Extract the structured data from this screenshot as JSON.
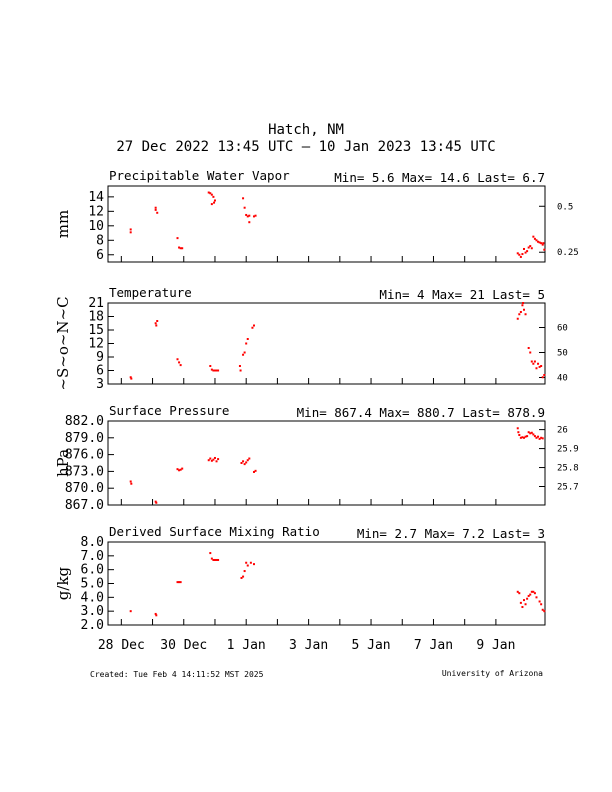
{
  "header": {
    "title": "Hatch, NM",
    "subtitle": "27 Dec 2022 13:45 UTC – 10 Jan 2023 13:45 UTC"
  },
  "footer": {
    "created": "Created: Tue Feb  4 14:11:52 MST 2025",
    "credit": "University of Arizona"
  },
  "x_axis": {
    "labels": [
      "28 Dec",
      "30 Dec",
      "1 Jan",
      "3 Jan",
      "5 Jan",
      "7 Jan",
      "9 Jan"
    ],
    "label_days": [
      1,
      3,
      5,
      7,
      9,
      11,
      13
    ],
    "tick_days": [
      1,
      2,
      3,
      4,
      5,
      6,
      7,
      8,
      9,
      10,
      11,
      12,
      13
    ],
    "range_days": [
      0.573,
      14.573
    ]
  },
  "colors": {
    "data": "#ff0000",
    "axes": "#000000"
  },
  "chart_data": [
    {
      "type": "scatter",
      "title": "Precipitable Water Vapor",
      "stats": "Min= 5.6 Max= 14.6 Last= 6.7",
      "ylabel": "mm",
      "ylim": [
        5,
        15.5
      ],
      "yticks": [
        6,
        8,
        10,
        12,
        14
      ],
      "right_axis": {
        "ticks": [
          0.25,
          0.5
        ],
        "labels": [
          "0.25",
          "0.5"
        ],
        "factor": 25.4
      },
      "points": [
        [
          1.3,
          9.5
        ],
        [
          1.3,
          9.1
        ],
        [
          2.1,
          12.2
        ],
        [
          2.1,
          12.5
        ],
        [
          2.15,
          11.8
        ],
        [
          2.8,
          8.3
        ],
        [
          2.85,
          7.0
        ],
        [
          2.9,
          6.9
        ],
        [
          2.95,
          6.9
        ],
        [
          3.8,
          14.6
        ],
        [
          3.85,
          14.5
        ],
        [
          3.9,
          14.3
        ],
        [
          3.95,
          14.0
        ],
        [
          4.0,
          13.5
        ],
        [
          3.97,
          13.2
        ],
        [
          3.9,
          13.0
        ],
        [
          4.9,
          13.8
        ],
        [
          4.95,
          12.5
        ],
        [
          5.0,
          11.5
        ],
        [
          5.05,
          11.3
        ],
        [
          5.1,
          11.4
        ],
        [
          5.1,
          10.5
        ],
        [
          5.25,
          11.3
        ],
        [
          5.3,
          11.4
        ],
        [
          13.7,
          6.2
        ],
        [
          13.75,
          6.0
        ],
        [
          13.8,
          5.7
        ],
        [
          13.85,
          6.1
        ],
        [
          13.9,
          6.8
        ],
        [
          13.95,
          6.3
        ],
        [
          14.0,
          6.5
        ],
        [
          14.05,
          7.0
        ],
        [
          14.1,
          7.2
        ],
        [
          14.15,
          6.9
        ],
        [
          14.2,
          8.5
        ],
        [
          14.25,
          8.2
        ],
        [
          14.3,
          8.0
        ],
        [
          14.35,
          7.8
        ],
        [
          14.4,
          7.7
        ],
        [
          14.45,
          7.6
        ],
        [
          14.5,
          7.4
        ],
        [
          14.52,
          7.6
        ],
        [
          14.55,
          6.7
        ]
      ]
    },
    {
      "type": "scatter",
      "title": "Temperature",
      "stats": "Min= 4 Max= 21 Last= 5",
      "ylabel": "~S~o~N~C",
      "ylim": [
        3,
        21
      ],
      "yticks": [
        3,
        6,
        9,
        12,
        15,
        18,
        21
      ],
      "right_axis": {
        "ticks": [
          40,
          50,
          60
        ],
        "labels": [
          "40",
          "50",
          "60"
        ],
        "convert": "c_to_f"
      },
      "points": [
        [
          1.3,
          4.5
        ],
        [
          1.32,
          4.2
        ],
        [
          2.1,
          16.5
        ],
        [
          2.12,
          16.0
        ],
        [
          2.15,
          17.0
        ],
        [
          2.8,
          8.5
        ],
        [
          2.85,
          7.8
        ],
        [
          2.9,
          7.2
        ],
        [
          3.85,
          7.0
        ],
        [
          3.9,
          6.2
        ],
        [
          3.95,
          6.0
        ],
        [
          4.0,
          6.0
        ],
        [
          4.05,
          6.0
        ],
        [
          4.1,
          6.0
        ],
        [
          4.8,
          7.0
        ],
        [
          4.82,
          6.0
        ],
        [
          4.9,
          9.5
        ],
        [
          4.95,
          10.0
        ],
        [
          5.0,
          12.0
        ],
        [
          5.05,
          13.0
        ],
        [
          5.2,
          15.5
        ],
        [
          5.25,
          16.0
        ],
        [
          13.7,
          17.5
        ],
        [
          13.75,
          18.5
        ],
        [
          13.8,
          19.0
        ],
        [
          13.85,
          20.5
        ],
        [
          13.87,
          21.0
        ],
        [
          13.9,
          19.5
        ],
        [
          13.95,
          18.5
        ],
        [
          14.05,
          11.0
        ],
        [
          14.1,
          10.0
        ],
        [
          14.15,
          8.0
        ],
        [
          14.2,
          7.5
        ],
        [
          14.25,
          8.0
        ],
        [
          14.3,
          6.5
        ],
        [
          14.35,
          7.5
        ],
        [
          14.4,
          6.8
        ],
        [
          14.45,
          7.0
        ],
        [
          14.5,
          4.5
        ],
        [
          14.55,
          5.0
        ]
      ]
    },
    {
      "type": "scatter",
      "title": "Surface Pressure",
      "stats": "Min= 867.4 Max= 880.7 Last= 878.9",
      "ylabel": "hPa",
      "ylim": [
        867,
        882
      ],
      "yticks": [
        867.0,
        870.0,
        873.0,
        876.0,
        879.0,
        882.0
      ],
      "ytick_labels": [
        "867.0",
        "870.0",
        "873.0",
        "876.0",
        "879.0",
        "882.0"
      ],
      "right_axis": {
        "ticks": [
          25.7,
          25.8,
          25.9,
          26.0
        ],
        "labels": [
          "25.7",
          "25.8",
          "25.9",
          "26"
        ],
        "factor": 33.8639
      },
      "points": [
        [
          1.3,
          871.2
        ],
        [
          1.32,
          870.8
        ],
        [
          2.1,
          867.6
        ],
        [
          2.12,
          867.4
        ],
        [
          2.8,
          873.4
        ],
        [
          2.85,
          873.2
        ],
        [
          2.9,
          873.3
        ],
        [
          2.95,
          873.5
        ],
        [
          3.8,
          875.0
        ],
        [
          3.85,
          875.3
        ],
        [
          3.9,
          874.9
        ],
        [
          3.95,
          875.1
        ],
        [
          4.0,
          875.4
        ],
        [
          4.05,
          874.8
        ],
        [
          4.1,
          875.2
        ],
        [
          4.85,
          874.5
        ],
        [
          4.9,
          874.8
        ],
        [
          4.95,
          874.3
        ],
        [
          5.0,
          874.6
        ],
        [
          5.05,
          875.0
        ],
        [
          5.1,
          875.3
        ],
        [
          5.25,
          872.9
        ],
        [
          5.3,
          873.1
        ],
        [
          13.7,
          880.7
        ],
        [
          13.72,
          880.0
        ],
        [
          13.75,
          879.5
        ],
        [
          13.8,
          879.0
        ],
        [
          13.85,
          879.1
        ],
        [
          13.9,
          879.0
        ],
        [
          13.95,
          879.2
        ],
        [
          14.0,
          879.3
        ],
        [
          14.05,
          880.0
        ],
        [
          14.1,
          879.8
        ],
        [
          14.15,
          879.9
        ],
        [
          14.2,
          879.6
        ],
        [
          14.25,
          879.3
        ],
        [
          14.3,
          879.0
        ],
        [
          14.35,
          879.2
        ],
        [
          14.4,
          878.8
        ],
        [
          14.45,
          879.0
        ],
        [
          14.5,
          878.9
        ]
      ]
    },
    {
      "type": "scatter",
      "title": "Derived Surface Mixing Ratio",
      "stats": "Min= 2.7 Max= 7.2 Last= 3",
      "ylabel": "g/kg",
      "ylim": [
        2,
        8
      ],
      "yticks": [
        2.0,
        3.0,
        4.0,
        5.0,
        6.0,
        7.0,
        8.0
      ],
      "ytick_labels": [
        "2.0",
        "3.0",
        "4.0",
        "5.0",
        "6.0",
        "7.0",
        "8.0"
      ],
      "points": [
        [
          1.3,
          3.0
        ],
        [
          2.1,
          2.8
        ],
        [
          2.12,
          2.7
        ],
        [
          2.8,
          5.1
        ],
        [
          2.85,
          5.1
        ],
        [
          2.9,
          5.1
        ],
        [
          3.85,
          7.2
        ],
        [
          3.9,
          6.8
        ],
        [
          3.95,
          6.7
        ],
        [
          4.0,
          6.7
        ],
        [
          4.05,
          6.7
        ],
        [
          4.1,
          6.7
        ],
        [
          4.85,
          5.4
        ],
        [
          4.9,
          5.5
        ],
        [
          4.95,
          5.9
        ],
        [
          5.0,
          6.5
        ],
        [
          5.05,
          6.3
        ],
        [
          5.15,
          6.5
        ],
        [
          5.25,
          6.4
        ],
        [
          13.7,
          4.4
        ],
        [
          13.75,
          4.3
        ],
        [
          13.8,
          3.6
        ],
        [
          13.85,
          3.3
        ],
        [
          13.9,
          3.8
        ],
        [
          13.95,
          3.5
        ],
        [
          14.0,
          3.9
        ],
        [
          14.05,
          4.1
        ],
        [
          14.1,
          4.2
        ],
        [
          14.15,
          4.4
        ],
        [
          14.2,
          4.4
        ],
        [
          14.25,
          4.3
        ],
        [
          14.3,
          4.0
        ],
        [
          14.4,
          3.7
        ],
        [
          14.45,
          3.5
        ],
        [
          14.5,
          3.1
        ],
        [
          14.55,
          3.0
        ]
      ]
    }
  ]
}
